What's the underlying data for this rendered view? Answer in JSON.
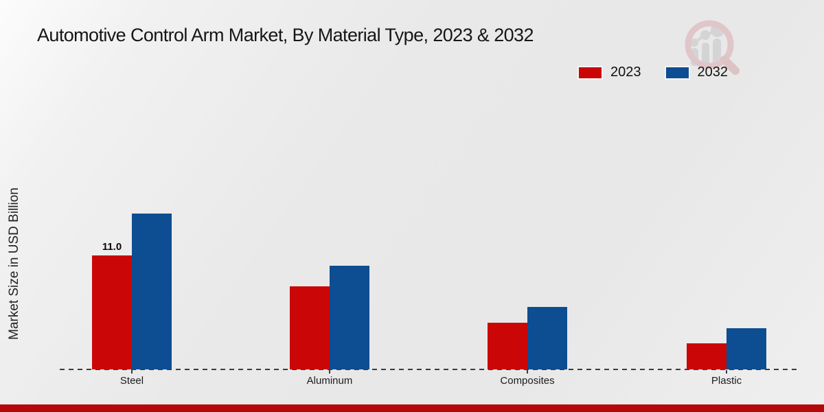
{
  "title": "Automotive Control Arm Market, By Material Type, 2023 & 2032",
  "ylabel": "Market Size in USD Billion",
  "legend": {
    "items": [
      {
        "label": "2023",
        "color": "#cb0606"
      },
      {
        "label": "2032",
        "color": "#0d4d92"
      }
    ]
  },
  "colors": {
    "bar_2023": "#cb0606",
    "bar_2032": "#0d4d92",
    "footer_bar": "#b50808",
    "axis_line": "#3c3c3c"
  },
  "watermark_icon": "magnifier-bar-chart-logo",
  "chart_data": {
    "type": "bar",
    "title": "Automotive Control Arm Market, By Material Type, 2023 & 2032",
    "categories": [
      "Steel",
      "Aluminum",
      "Composites",
      "Plastic"
    ],
    "series": [
      {
        "name": "2023",
        "color": "#cb0606",
        "values": [
          11.0,
          8.0,
          4.5,
          2.5
        ]
      },
      {
        "name": "2032",
        "color": "#0d4d92",
        "values": [
          15.0,
          10.0,
          6.0,
          4.0
        ]
      }
    ],
    "bar_value_labels": [
      {
        "series": "2023",
        "category": "Steel",
        "text": "11.0"
      }
    ],
    "xlabel": "",
    "ylabel": "Market Size in USD Billion",
    "ylim": [
      0,
      15.5
    ],
    "grid": false,
    "y_ticks_visible": false,
    "x_axis_style": "dashed",
    "legend_position": "top-right"
  }
}
